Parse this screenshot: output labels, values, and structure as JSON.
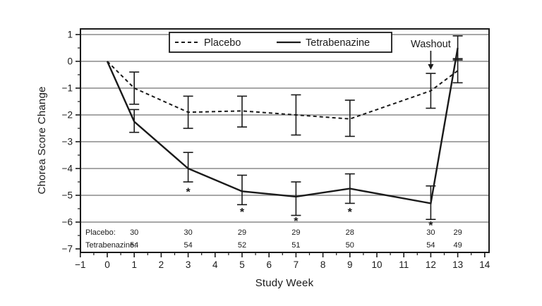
{
  "colors": {
    "ink": "#1a1a1a",
    "grid": "#8a8a8a",
    "background": "#ffffff"
  },
  "chart_data": {
    "type": "line",
    "title": "",
    "xlabel": "Study Week",
    "ylabel": "Chorea Score Change",
    "xlim": [
      -1,
      14
    ],
    "ylim": [
      -7,
      1
    ],
    "x_ticks": [
      -1,
      0,
      1,
      2,
      3,
      4,
      5,
      6,
      7,
      8,
      9,
      10,
      11,
      12,
      13,
      14
    ],
    "y_ticks": [
      1,
      0,
      -1,
      -2,
      -3,
      -4,
      -5,
      -6,
      -7
    ],
    "grid_values": [
      1,
      0,
      -1,
      -2,
      -3,
      -4,
      -5,
      -6
    ],
    "grid_on": true,
    "legend": {
      "position": "top-center-inside",
      "entries": [
        {
          "label": "Placebo",
          "line_style": "dashed"
        },
        {
          "label": "Tetrabenazine",
          "line_style": "solid"
        }
      ]
    },
    "series": [
      {
        "name": "Placebo",
        "line_style": "dashed",
        "x": [
          0,
          1,
          3,
          5,
          7,
          9,
          12,
          13
        ],
        "y": [
          0,
          -1.0,
          -1.9,
          -1.85,
          -2.0,
          -2.15,
          -1.1,
          -0.35
        ],
        "err_hi": [
          null,
          -0.4,
          -1.3,
          -1.3,
          -1.25,
          -1.45,
          -0.45,
          0.1
        ],
        "err_lo": [
          null,
          -1.6,
          -2.5,
          -2.45,
          -2.75,
          -2.8,
          -1.75,
          -0.8
        ]
      },
      {
        "name": "Tetrabenazine",
        "line_style": "solid",
        "x": [
          0,
          1,
          3,
          5,
          7,
          9,
          12,
          13
        ],
        "y": [
          0,
          -2.25,
          -4.0,
          -4.85,
          -5.05,
          -4.75,
          -5.3,
          0.5
        ],
        "err_hi": [
          null,
          -1.8,
          -3.4,
          -4.25,
          -4.5,
          -4.2,
          -4.65,
          0.95
        ],
        "err_lo": [
          null,
          -2.65,
          -4.5,
          -5.35,
          -5.75,
          -5.3,
          -5.9,
          0.05
        ]
      }
    ],
    "significance_markers": {
      "symbol": "*",
      "series": "Tetrabenazine",
      "points": [
        {
          "week": 3,
          "y": -4.85
        },
        {
          "week": 5,
          "y": -5.6
        },
        {
          "week": 7,
          "y": -5.95
        },
        {
          "week": 9,
          "y": -5.6
        },
        {
          "week": 12,
          "y": -6.1
        }
      ]
    },
    "washout": {
      "label": "Washout",
      "arrow_week": 12
    },
    "sample_sizes": {
      "weeks": [
        1,
        3,
        5,
        7,
        9,
        12,
        13
      ],
      "rows": [
        {
          "label": "Placebo:",
          "values": [
            30,
            30,
            29,
            29,
            28,
            30,
            29
          ]
        },
        {
          "label": "Tetrabenazine:",
          "values": [
            54,
            54,
            52,
            51,
            50,
            54,
            49
          ]
        }
      ]
    }
  }
}
